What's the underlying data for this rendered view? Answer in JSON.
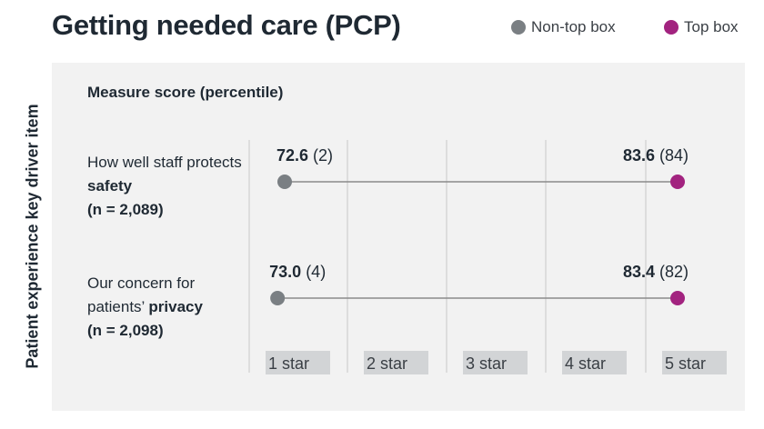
{
  "colors": {
    "non_top_box": "#7a7f83",
    "top_box": "#a2237f",
    "panel_bg": "#f2f2f2",
    "gridline": "#d6d6d6",
    "tick_bg": "#d2d4d6",
    "connector": "#8a8a8a"
  },
  "chart_data": {
    "type": "dumbbell",
    "title": "Getting needed care (PCP)",
    "ylabel": "Patient experience key driver item",
    "panel_title": "Measure score (percentile)",
    "legend": [
      "Non-top box",
      "Top box"
    ],
    "legend_position": "top-right",
    "x_categories": [
      "1 star",
      "2 star",
      "3 star",
      "4 star",
      "5 star"
    ],
    "x_range_stars": [
      1,
      5
    ],
    "grid": true,
    "items": [
      {
        "label_pre": "How well staff protects",
        "label_bold": "safety",
        "n_label": "(n = 2,089)",
        "non_top_box": {
          "score": "72.6",
          "percentile": "(2)",
          "star_position": 1.15
        },
        "top_box": {
          "score": "83.6",
          "percentile": "(84)",
          "star_position": 5.0
        }
      },
      {
        "label_pre": "Our concern for patients’",
        "label_bold": "privacy",
        "n_label": "(n = 2,098)",
        "non_top_box": {
          "score": "73.0",
          "percentile": "(4)",
          "star_position": 1.08
        },
        "top_box": {
          "score": "83.4",
          "percentile": "(82)",
          "star_position": 5.0
        }
      }
    ]
  }
}
